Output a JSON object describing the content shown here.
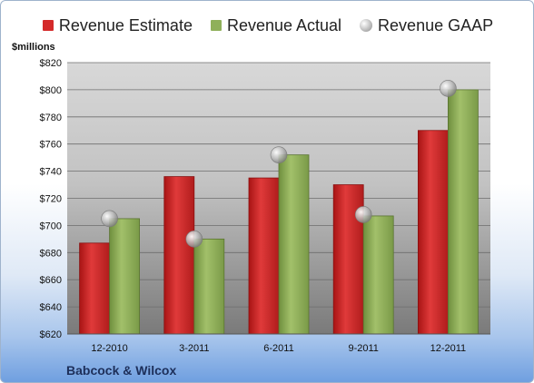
{
  "unit_label": "$millions",
  "company": "Babcock & Wilcox",
  "colors": {
    "estimate": "#d42a2a",
    "actual": "#8fb05a",
    "gaap": "#c8c8c8"
  },
  "chart_data": {
    "type": "bar",
    "categories": [
      "12-2010",
      "3-2011",
      "6-2011",
      "9-2011",
      "12-2011"
    ],
    "series": [
      {
        "name": "Revenue Estimate",
        "kind": "bar",
        "values": [
          687,
          736,
          735,
          730,
          770
        ]
      },
      {
        "name": "Revenue Actual",
        "kind": "bar",
        "values": [
          705,
          690,
          752,
          707,
          800
        ]
      },
      {
        "name": "Revenue GAAP",
        "kind": "marker",
        "values": [
          705,
          690,
          752,
          708,
          801
        ]
      }
    ],
    "ylim": [
      620,
      820
    ],
    "yticks": [
      "$620",
      "$640",
      "$660",
      "$680",
      "$700",
      "$720",
      "$740",
      "$760",
      "$780",
      "$800",
      "$820"
    ],
    "grid": true,
    "legend_position": "top"
  }
}
